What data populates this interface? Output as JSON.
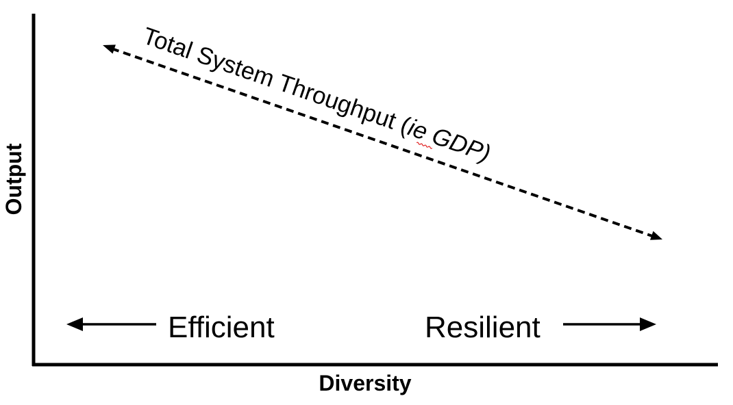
{
  "axes": {
    "y_label": "Output",
    "x_label": "Diversity"
  },
  "trend": {
    "label_prefix": "Total System Throughput (",
    "label_italic": "ie GDP)",
    "line_style": "dashed",
    "direction": "two-way, decreasing left to right"
  },
  "spectrum": {
    "left_label": "Efficient",
    "right_label": "Resilient"
  },
  "colors": {
    "ink": "#000000",
    "background": "#ffffff",
    "spellcheck_underline": "#e02020"
  }
}
